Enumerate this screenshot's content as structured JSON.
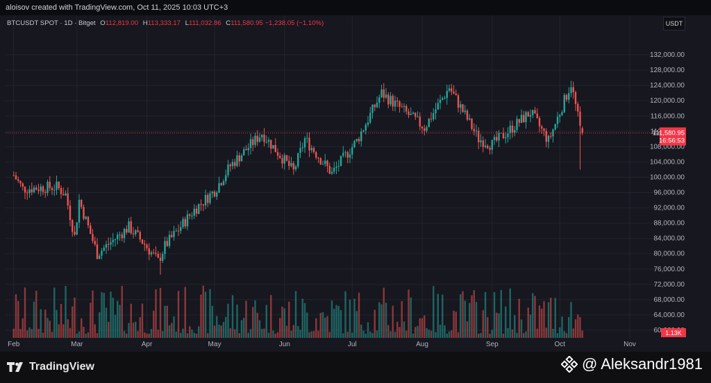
{
  "header": {
    "credit": "aloisov created with TradingView.com, Oct 11, 2025 10:03 UTC+3"
  },
  "legend": {
    "symbol": "BTCUSDT SPOT · 1D · Bitget",
    "open_label": "O",
    "open": "112,819.00",
    "high_label": "H",
    "high": "113,333.17",
    "low_label": "L",
    "low": "111,032.86",
    "close_label": "C",
    "close": "111,580.95",
    "change": "−1,238.05 (−1.10%)"
  },
  "price_axis": {
    "currency": "USDT"
  },
  "last_price": {
    "value": "111,580.95",
    "countdown": "16:56:53"
  },
  "volume_label": "1.13K",
  "footer": {
    "brand": "TradingView",
    "watermark": "@ Aleksandr1981"
  },
  "colors": {
    "up": "#26a69a",
    "down": "#ef5350",
    "background": "#16171f",
    "grid": "#22252f",
    "axis_text": "#b2b5be",
    "last_price": "#f23645"
  },
  "chart_data": {
    "type": "candlestick",
    "title": "BTCUSDT SPOT · 1D · Bitget",
    "x_axis_labels": [
      "Feb",
      "Mar",
      "Apr",
      "May",
      "Jun",
      "Jul",
      "Aug",
      "Sep",
      "Oct",
      "Nov"
    ],
    "y_axis_labels": [
      "60,000.00",
      "64,000.00",
      "68,000.00",
      "72,000.00",
      "76,000.00",
      "80,000.00",
      "84,000.00",
      "88,000.00",
      "92,000.00",
      "96,000.00",
      "100,000.00",
      "104,000.00",
      "108,000.00",
      "112,000.00",
      "116,000.00",
      "120,000.00",
      "124,000.00",
      "128,000.00",
      "132,000.00"
    ],
    "ylim": [
      58000,
      136000
    ],
    "grid": true,
    "close_path": [
      {
        "date": "2025-02-01",
        "close": 100500
      },
      {
        "date": "2025-02-05",
        "close": 97000
      },
      {
        "date": "2025-02-20",
        "close": 97500
      },
      {
        "date": "2025-02-24",
        "close": 95500
      },
      {
        "date": "2025-02-28",
        "close": 84500
      },
      {
        "date": "2025-03-02",
        "close": 94000
      },
      {
        "date": "2025-03-10",
        "close": 80000
      },
      {
        "date": "2025-03-24",
        "close": 87000
      },
      {
        "date": "2025-03-31",
        "close": 82500
      },
      {
        "date": "2025-04-06",
        "close": 78000
      },
      {
        "date": "2025-04-09",
        "close": 82000
      },
      {
        "date": "2025-04-22",
        "close": 91500
      },
      {
        "date": "2025-05-01",
        "close": 96500
      },
      {
        "date": "2025-05-08",
        "close": 103000
      },
      {
        "date": "2025-05-22",
        "close": 111500
      },
      {
        "date": "2025-06-05",
        "close": 101500
      },
      {
        "date": "2025-06-10",
        "close": 110000
      },
      {
        "date": "2025-06-22",
        "close": 101000
      },
      {
        "date": "2025-07-03",
        "close": 109500
      },
      {
        "date": "2025-07-14",
        "close": 122000
      },
      {
        "date": "2025-08-02",
        "close": 113000
      },
      {
        "date": "2025-08-13",
        "close": 123500
      },
      {
        "date": "2025-08-26",
        "close": 110000
      },
      {
        "date": "2025-09-01",
        "close": 108500
      },
      {
        "date": "2025-09-18",
        "close": 117000
      },
      {
        "date": "2025-09-26",
        "close": 109500
      },
      {
        "date": "2025-10-06",
        "close": 124500
      },
      {
        "date": "2025-10-10",
        "close": 112819
      },
      {
        "date": "2025-10-11",
        "close": 111580.95
      }
    ],
    "last": {
      "open": 112819.0,
      "high": 113333.17,
      "low": 111032.86,
      "close": 111580.95
    }
  }
}
